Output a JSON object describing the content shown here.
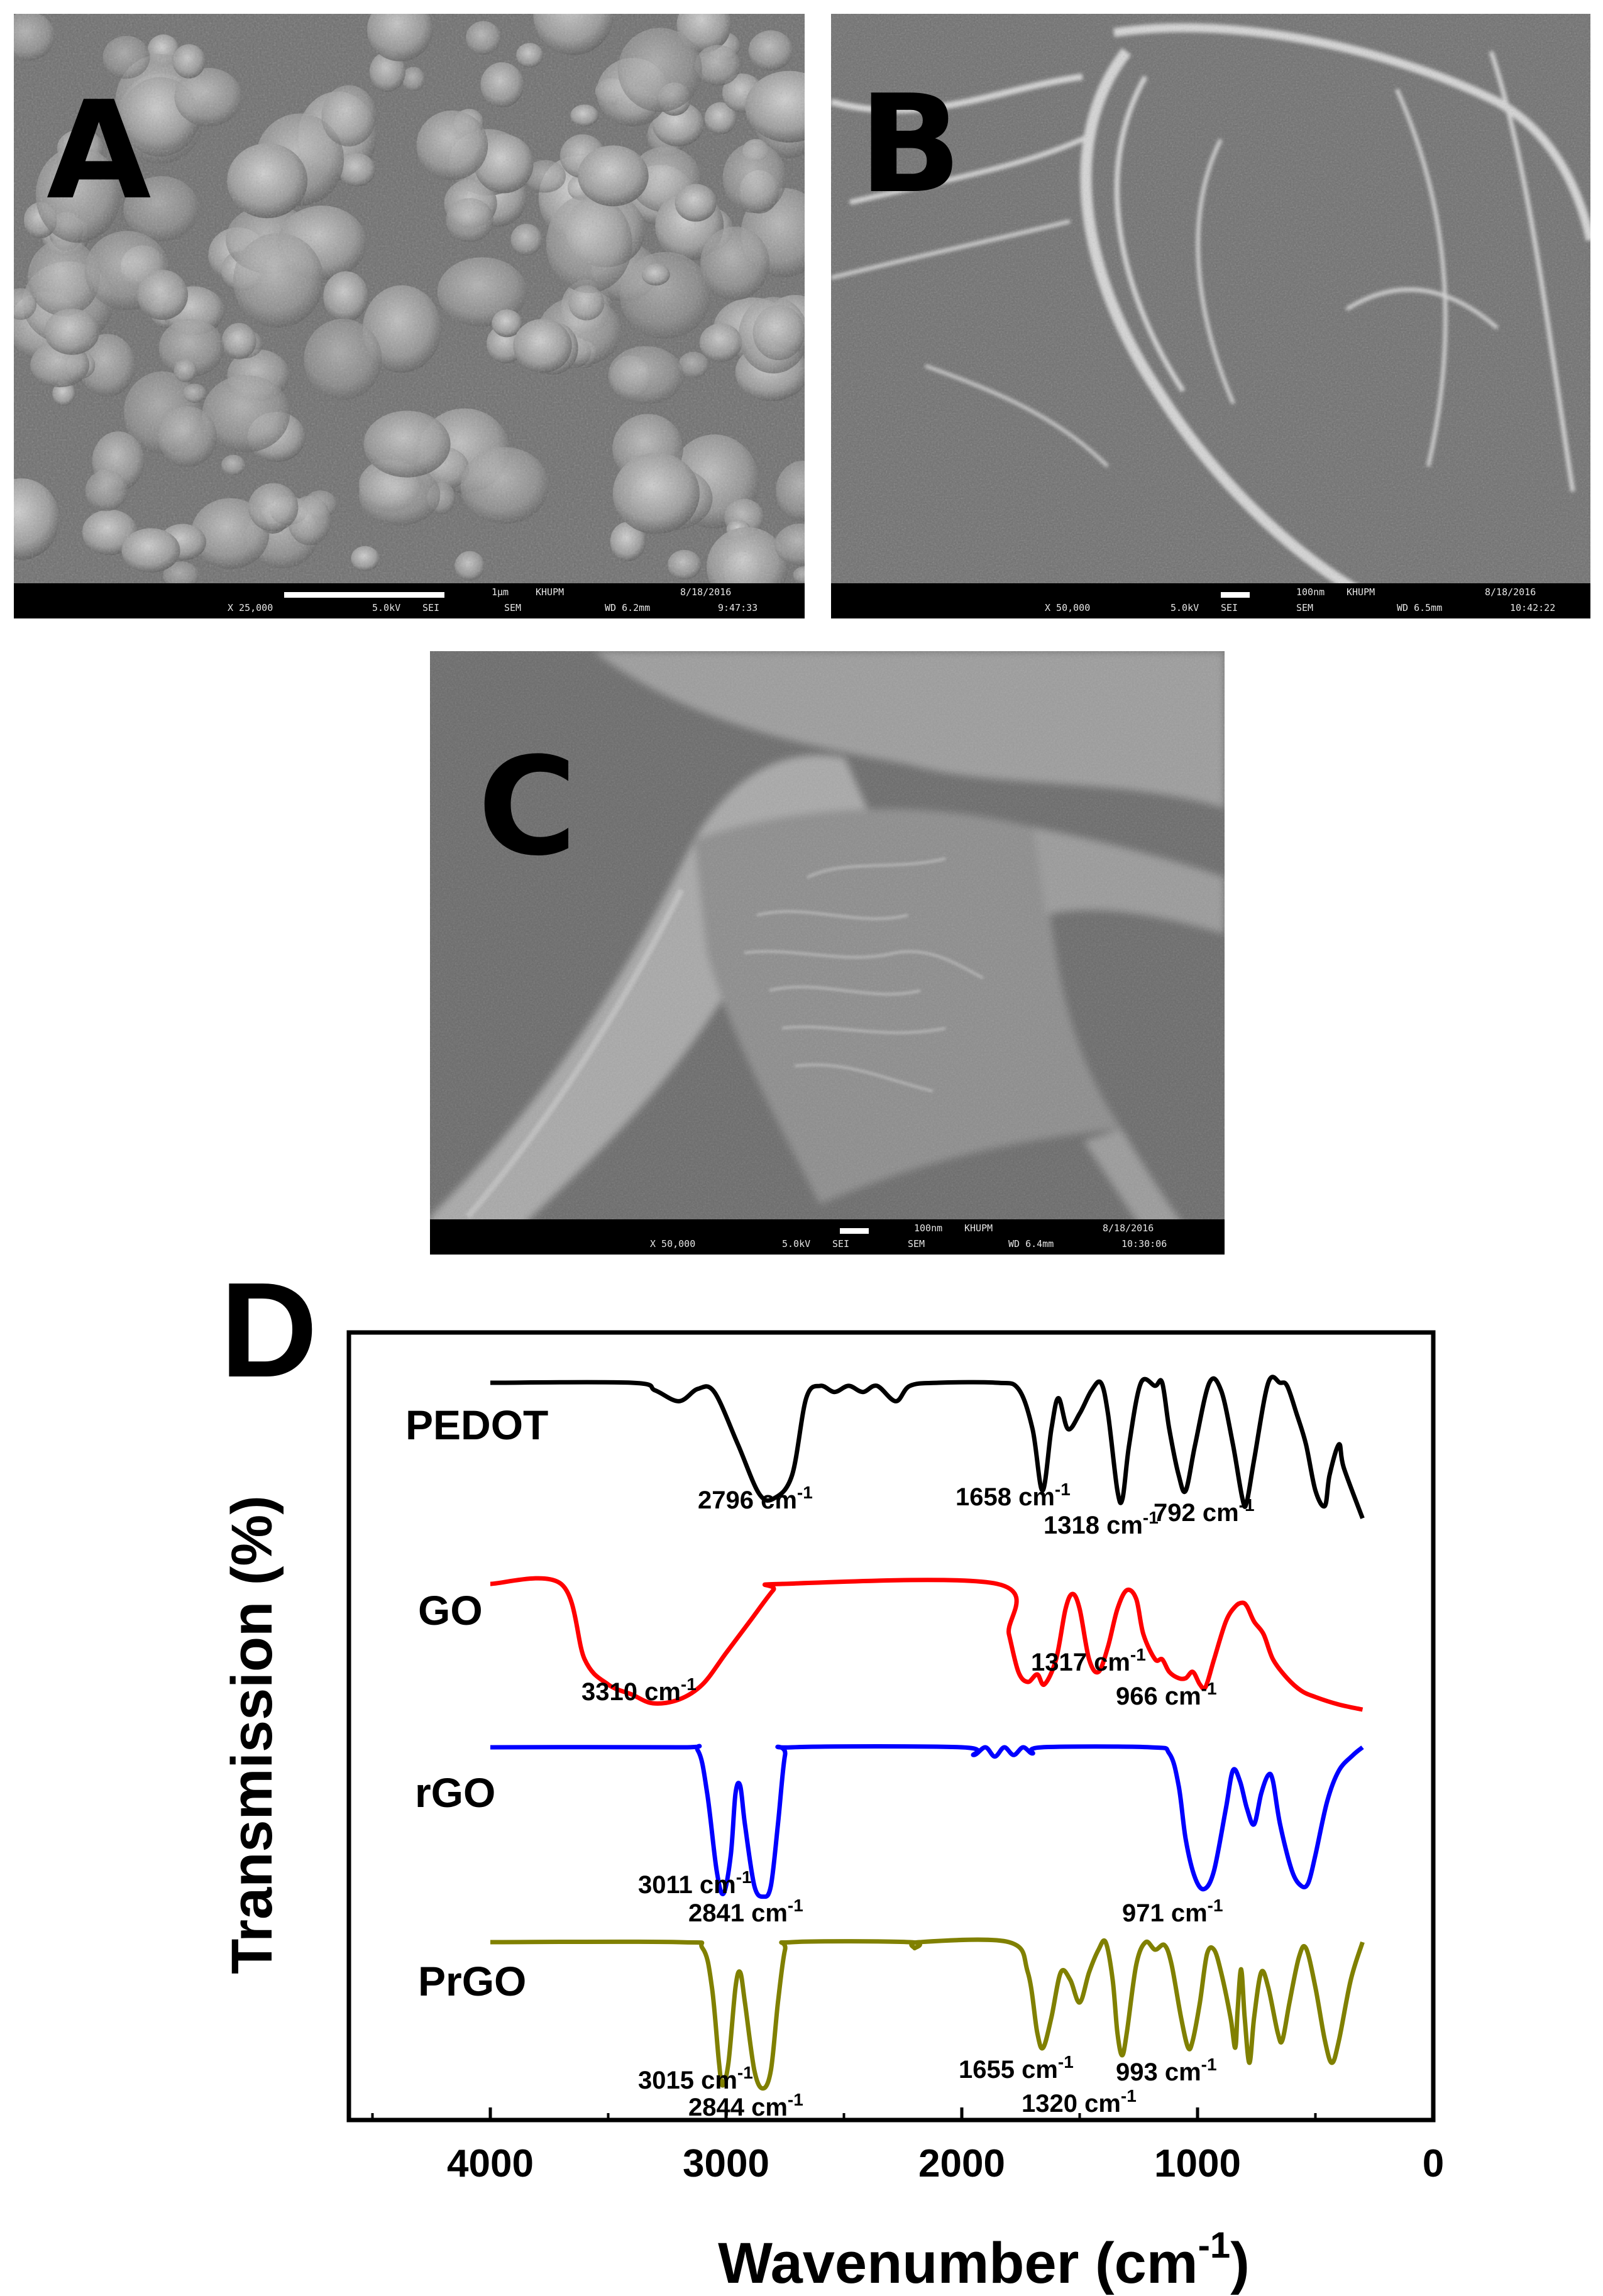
{
  "panels": {
    "a": {
      "letter": "A",
      "bar": {
        "scale": "1μm",
        "lab": "KHUPM",
        "date": "8/18/2016",
        "mag": "X 25,000",
        "kv": "5.0kV",
        "sei": "SEI",
        "sem": "SEM",
        "wd": "WD 6.2mm",
        "time": "9:47:33"
      }
    },
    "b": {
      "letter": "B",
      "bar": {
        "scale": "100nm",
        "lab": "KHUPM",
        "date": "8/18/2016",
        "mag": "X 50,000",
        "kv": "5.0kV",
        "sei": "SEI",
        "sem": "SEM",
        "wd": "WD 6.5mm",
        "time": "10:42:22"
      }
    },
    "c": {
      "letter": "C",
      "bar": {
        "scale": "100nm",
        "lab": "KHUPM",
        "date": "8/18/2016",
        "mag": "X 50,000",
        "kv": "5.0kV",
        "sei": "SEI",
        "sem": "SEM",
        "wd": "WD 6.4mm",
        "time": "10:30:06"
      }
    },
    "d": {
      "letter": "D"
    }
  },
  "chart_data": {
    "type": "line",
    "xlabel": "Wavenumber (cm",
    "xlabel_sup": "-1",
    "xlabel_close": ")",
    "ylabel": "Transmission (%)",
    "xlim": [
      4600,
      0
    ],
    "xticks": [
      4000,
      3000,
      2000,
      1000,
      0
    ],
    "y_ticks_shown": false,
    "series": [
      {
        "name": "PEDOT",
        "color": "#000000",
        "points": [
          [
            4000,
            100
          ],
          [
            3400,
            100
          ],
          [
            3300,
            95
          ],
          [
            3200,
            88
          ],
          [
            3120,
            96
          ],
          [
            3050,
            94
          ],
          [
            2950,
            60
          ],
          [
            2860,
            28
          ],
          [
            2796,
            25
          ],
          [
            2720,
            40
          ],
          [
            2660,
            90
          ],
          [
            2600,
            98
          ],
          [
            2540,
            94
          ],
          [
            2480,
            98
          ],
          [
            2420,
            94
          ],
          [
            2360,
            98
          ],
          [
            2280,
            88
          ],
          [
            2220,
            98
          ],
          [
            2100,
            100
          ],
          [
            1850,
            100
          ],
          [
            1760,
            96
          ],
          [
            1700,
            70
          ],
          [
            1658,
            30
          ],
          [
            1620,
            70
          ],
          [
            1590,
            90
          ],
          [
            1550,
            70
          ],
          [
            1500,
            80
          ],
          [
            1450,
            95
          ],
          [
            1410,
            100
          ],
          [
            1380,
            80
          ],
          [
            1340,
            30
          ],
          [
            1318,
            25
          ],
          [
            1290,
            60
          ],
          [
            1240,
            100
          ],
          [
            1180,
            98
          ],
          [
            1150,
            100
          ],
          [
            1120,
            70
          ],
          [
            1080,
            40
          ],
          [
            1050,
            30
          ],
          [
            1010,
            60
          ],
          [
            950,
            100
          ],
          [
            900,
            95
          ],
          [
            850,
            60
          ],
          [
            810,
            25
          ],
          [
            792,
            22
          ],
          [
            760,
            50
          ],
          [
            700,
            100
          ],
          [
            650,
            100
          ],
          [
            620,
            98
          ],
          [
            580,
            80
          ],
          [
            540,
            60
          ],
          [
            500,
            30
          ],
          [
            460,
            20
          ],
          [
            440,
            40
          ],
          [
            400,
            60
          ],
          [
            380,
            45
          ],
          [
            300,
            12
          ]
        ]
      },
      {
        "name": "GO",
        "color": "#ff0000",
        "points": [
          [
            4000,
            100
          ],
          [
            3700,
            100
          ],
          [
            3600,
            40
          ],
          [
            3500,
            20
          ],
          [
            3400,
            12
          ],
          [
            3310,
            5
          ],
          [
            3200,
            8
          ],
          [
            3100,
            20
          ],
          [
            3000,
            45
          ],
          [
            2900,
            70
          ],
          [
            2800,
            95
          ],
          [
            2760,
            100
          ],
          [
            1850,
            100
          ],
          [
            1800,
            60
          ],
          [
            1760,
            30
          ],
          [
            1720,
            22
          ],
          [
            1680,
            28
          ],
          [
            1650,
            20
          ],
          [
            1600,
            40
          ],
          [
            1560,
            80
          ],
          [
            1530,
            92
          ],
          [
            1500,
            80
          ],
          [
            1460,
            40
          ],
          [
            1420,
            30
          ],
          [
            1380,
            50
          ],
          [
            1340,
            80
          ],
          [
            1300,
            95
          ],
          [
            1260,
            88
          ],
          [
            1230,
            60
          ],
          [
            1180,
            40
          ],
          [
            1150,
            40
          ],
          [
            1120,
            30
          ],
          [
            1080,
            25
          ],
          [
            1050,
            25
          ],
          [
            1020,
            30
          ],
          [
            990,
            20
          ],
          [
            966,
            18
          ],
          [
            930,
            40
          ],
          [
            880,
            70
          ],
          [
            840,
            82
          ],
          [
            810,
            85
          ],
          [
            790,
            82
          ],
          [
            760,
            70
          ],
          [
            720,
            60
          ],
          [
            680,
            40
          ],
          [
            620,
            25
          ],
          [
            560,
            15
          ],
          [
            500,
            10
          ],
          [
            400,
            4
          ],
          [
            300,
            0
          ]
        ]
      },
      {
        "name": "rGO",
        "color": "#0000ff",
        "points": [
          [
            4000,
            100
          ],
          [
            3200,
            100
          ],
          [
            3120,
            98
          ],
          [
            3080,
            70
          ],
          [
            3040,
            20
          ],
          [
            3011,
            5
          ],
          [
            2980,
            30
          ],
          [
            2960,
            70
          ],
          [
            2940,
            75
          ],
          [
            2920,
            50
          ],
          [
            2880,
            10
          ],
          [
            2841,
            3
          ],
          [
            2810,
            10
          ],
          [
            2780,
            50
          ],
          [
            2750,
            95
          ],
          [
            2720,
            100
          ],
          [
            2000,
            100
          ],
          [
            1950,
            95
          ],
          [
            1900,
            100
          ],
          [
            1860,
            94
          ],
          [
            1820,
            100
          ],
          [
            1780,
            95
          ],
          [
            1740,
            100
          ],
          [
            1700,
            96
          ],
          [
            1660,
            100
          ],
          [
            1200,
            100
          ],
          [
            1120,
            96
          ],
          [
            1080,
            75
          ],
          [
            1050,
            40
          ],
          [
            1010,
            15
          ],
          [
            971,
            8
          ],
          [
            930,
            20
          ],
          [
            880,
            60
          ],
          [
            850,
            85
          ],
          [
            820,
            78
          ],
          [
            790,
            60
          ],
          [
            760,
            50
          ],
          [
            730,
            70
          ],
          [
            700,
            82
          ],
          [
            680,
            78
          ],
          [
            650,
            50
          ],
          [
            600,
            20
          ],
          [
            560,
            10
          ],
          [
            530,
            12
          ],
          [
            500,
            30
          ],
          [
            450,
            65
          ],
          [
            400,
            85
          ],
          [
            340,
            95
          ],
          [
            300,
            100
          ]
        ]
      },
      {
        "name": "PrGO",
        "color": "#808000",
        "points": [
          [
            4000,
            100
          ],
          [
            3200,
            100
          ],
          [
            3100,
            96
          ],
          [
            3060,
            70
          ],
          [
            3030,
            20
          ],
          [
            3015,
            5
          ],
          [
            2990,
            20
          ],
          [
            2960,
            70
          ],
          [
            2940,
            80
          ],
          [
            2920,
            60
          ],
          [
            2880,
            15
          ],
          [
            2844,
            3
          ],
          [
            2810,
            15
          ],
          [
            2780,
            60
          ],
          [
            2750,
            95
          ],
          [
            2720,
            100
          ],
          [
            2220,
            100
          ],
          [
            2200,
            96
          ],
          [
            2180,
            100
          ],
          [
            1800,
            100
          ],
          [
            1720,
            80
          ],
          [
            1680,
            40
          ],
          [
            1655,
            30
          ],
          [
            1620,
            50
          ],
          [
            1580,
            80
          ],
          [
            1540,
            75
          ],
          [
            1500,
            60
          ],
          [
            1460,
            80
          ],
          [
            1420,
            95
          ],
          [
            1390,
            100
          ],
          [
            1360,
            75
          ],
          [
            1340,
            40
          ],
          [
            1320,
            25
          ],
          [
            1300,
            40
          ],
          [
            1260,
            85
          ],
          [
            1220,
            100
          ],
          [
            1180,
            95
          ],
          [
            1140,
            98
          ],
          [
            1110,
            85
          ],
          [
            1070,
            50
          ],
          [
            1040,
            30
          ],
          [
            1020,
            35
          ],
          [
            990,
            60
          ],
          [
            960,
            92
          ],
          [
            930,
            95
          ],
          [
            900,
            80
          ],
          [
            860,
            50
          ],
          [
            840,
            30
          ],
          [
            830,
            55
          ],
          [
            815,
            82
          ],
          [
            800,
            50
          ],
          [
            780,
            20
          ],
          [
            760,
            50
          ],
          [
            730,
            80
          ],
          [
            700,
            70
          ],
          [
            660,
            40
          ],
          [
            640,
            35
          ],
          [
            610,
            60
          ],
          [
            570,
            90
          ],
          [
            540,
            96
          ],
          [
            500,
            70
          ],
          [
            460,
            35
          ],
          [
            430,
            20
          ],
          [
            400,
            35
          ],
          [
            350,
            75
          ],
          [
            300,
            100
          ]
        ]
      }
    ],
    "annotations": [
      {
        "text": "2796 cm",
        "sup": "-1",
        "series": "PEDOT",
        "wn": 2796
      },
      {
        "text": "1658 cm",
        "sup": "-1",
        "series": "PEDOT",
        "wn": 1658
      },
      {
        "text": "1318 cm",
        "sup": "-1",
        "series": "PEDOT",
        "wn": 1318
      },
      {
        "text": "792 cm",
        "sup": "-1",
        "series": "PEDOT",
        "wn": 792
      },
      {
        "text": "3310 cm",
        "sup": "-1",
        "series": "GO",
        "wn": 3310
      },
      {
        "text": "1317 cm",
        "sup": "-1",
        "series": "GO",
        "wn": 1317
      },
      {
        "text": "966 cm",
        "sup": "-1",
        "series": "GO",
        "wn": 966
      },
      {
        "text": "3011 cm",
        "sup": "-1",
        "series": "rGO",
        "wn": 3011
      },
      {
        "text": "2841 cm",
        "sup": "-1",
        "series": "rGO",
        "wn": 2841
      },
      {
        "text": "971 cm",
        "sup": "-1",
        "series": "rGO",
        "wn": 971
      },
      {
        "text": "3015 cm",
        "sup": "-1",
        "series": "PrGO",
        "wn": 3015
      },
      {
        "text": "2844 cm",
        "sup": "-1",
        "series": "PrGO",
        "wn": 2844
      },
      {
        "text": "1655 cm",
        "sup": "-1",
        "series": "PrGO",
        "wn": 1655
      },
      {
        "text": "1320 cm",
        "sup": "-1",
        "series": "PrGO",
        "wn": 1320
      },
      {
        "text": "993 cm",
        "sup": "-1",
        "series": "PrGO",
        "wn": 993
      }
    ]
  }
}
